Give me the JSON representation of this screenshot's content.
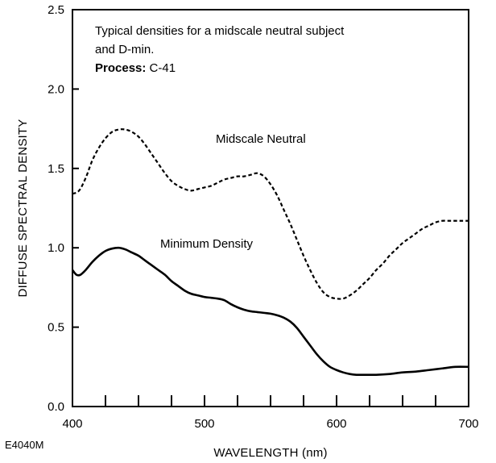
{
  "chart_data": {
    "type": "line",
    "xlabel": "WAVELENGTH (nm)",
    "ylabel": "DIFFUSE SPECTRAL DENSITY",
    "xlim": [
      400,
      700
    ],
    "ylim": [
      0.0,
      2.5
    ],
    "x_ticks": [
      400,
      500,
      600,
      700
    ],
    "x_tick_labels": [
      "400",
      "500",
      "600",
      "700"
    ],
    "y_ticks": [
      0.0,
      0.5,
      1.0,
      1.5,
      2.0,
      2.5
    ],
    "y_tick_labels": [
      "0.0",
      "0.5",
      "1.0",
      "1.5",
      "2.0",
      "2.5"
    ],
    "grid": false,
    "annotation": {
      "line1": "Typical densities for a midscale neutral subject",
      "line2": "and D-min.",
      "process_label": "Process:",
      "process_value": " C-41"
    },
    "figure_code": "E4040M",
    "series": [
      {
        "name": "Midscale Neutral",
        "style": "dashed",
        "color": "#000000",
        "x": [
          400,
          405,
          410,
          415,
          420,
          425,
          430,
          435,
          440,
          445,
          450,
          455,
          460,
          465,
          470,
          475,
          480,
          485,
          490,
          495,
          500,
          505,
          510,
          515,
          520,
          525,
          530,
          535,
          540,
          545,
          550,
          555,
          560,
          565,
          570,
          575,
          580,
          585,
          590,
          595,
          600,
          605,
          610,
          615,
          620,
          625,
          630,
          635,
          640,
          645,
          650,
          655,
          660,
          665,
          670,
          675,
          680,
          685,
          690,
          695,
          700
        ],
        "values": [
          1.34,
          1.36,
          1.44,
          1.55,
          1.63,
          1.69,
          1.73,
          1.745,
          1.745,
          1.73,
          1.7,
          1.65,
          1.59,
          1.53,
          1.47,
          1.42,
          1.39,
          1.37,
          1.36,
          1.37,
          1.38,
          1.39,
          1.41,
          1.43,
          1.44,
          1.45,
          1.45,
          1.46,
          1.47,
          1.45,
          1.4,
          1.33,
          1.24,
          1.15,
          1.05,
          0.95,
          0.86,
          0.78,
          0.72,
          0.69,
          0.68,
          0.68,
          0.7,
          0.73,
          0.77,
          0.81,
          0.86,
          0.9,
          0.95,
          0.99,
          1.03,
          1.06,
          1.09,
          1.12,
          1.14,
          1.16,
          1.17,
          1.17,
          1.17,
          1.17,
          1.17
        ]
      },
      {
        "name": "Minimum Density",
        "style": "solid",
        "color": "#000000",
        "x": [
          400,
          403,
          406,
          410,
          415,
          420,
          425,
          430,
          435,
          440,
          445,
          450,
          455,
          460,
          465,
          470,
          475,
          480,
          485,
          490,
          495,
          500,
          505,
          510,
          515,
          520,
          525,
          530,
          535,
          540,
          545,
          550,
          555,
          560,
          565,
          570,
          575,
          580,
          585,
          590,
          595,
          600,
          605,
          610,
          615,
          620,
          625,
          630,
          640,
          650,
          660,
          670,
          680,
          690,
          700
        ],
        "values": [
          0.86,
          0.83,
          0.83,
          0.86,
          0.91,
          0.95,
          0.98,
          0.995,
          1.0,
          0.99,
          0.97,
          0.95,
          0.92,
          0.89,
          0.86,
          0.83,
          0.79,
          0.76,
          0.73,
          0.71,
          0.7,
          0.69,
          0.685,
          0.68,
          0.67,
          0.645,
          0.625,
          0.61,
          0.6,
          0.595,
          0.59,
          0.585,
          0.575,
          0.56,
          0.535,
          0.495,
          0.44,
          0.385,
          0.33,
          0.285,
          0.25,
          0.23,
          0.215,
          0.205,
          0.2,
          0.2,
          0.2,
          0.2,
          0.205,
          0.215,
          0.22,
          0.23,
          0.24,
          0.25,
          0.25
        ]
      }
    ],
    "series_labels": [
      {
        "text": "Midscale Neutral",
        "x": 580,
        "y": 1.68
      },
      {
        "text": "Minimum Density",
        "x": 580,
        "y": 1.0
      }
    ]
  }
}
